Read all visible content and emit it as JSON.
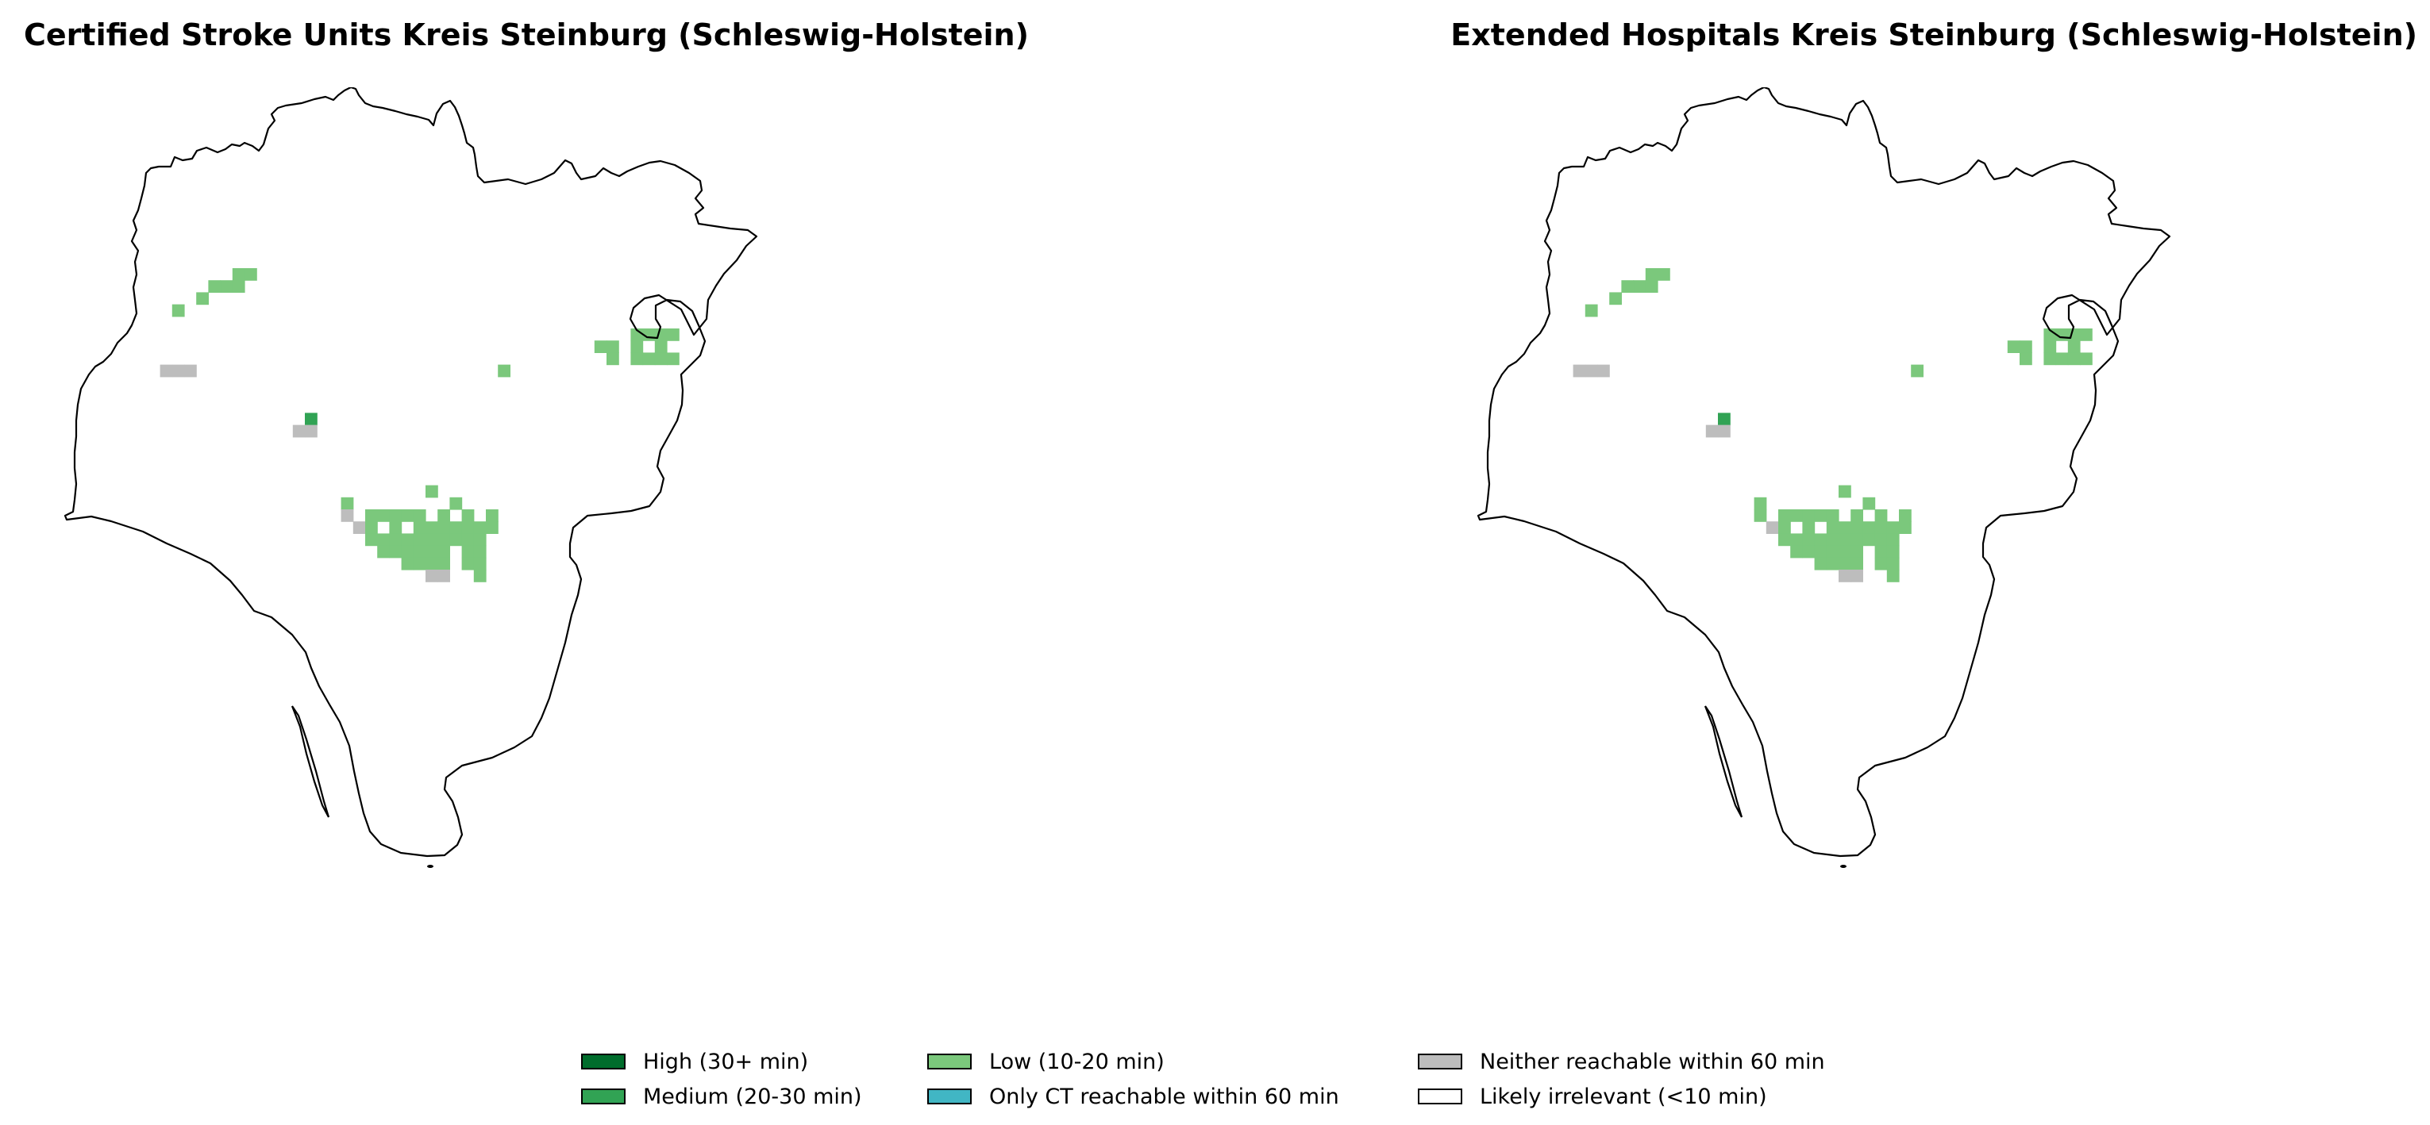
{
  "maps": [
    {
      "title": "Certified Stroke Units Kreis Steinburg (Schleswig-Holstein)",
      "cells": [
        {
          "col": 15,
          "row": 15,
          "cat": "low"
        },
        {
          "col": 14,
          "row": 15,
          "cat": "low"
        },
        {
          "col": 13,
          "row": 16,
          "cat": "low"
        },
        {
          "col": 14,
          "row": 16,
          "cat": "low"
        },
        {
          "col": 12,
          "row": 16,
          "cat": "low"
        },
        {
          "col": 11,
          "row": 17,
          "cat": "low"
        },
        {
          "col": 9,
          "row": 18,
          "cat": "low"
        },
        {
          "col": 47,
          "row": 20,
          "cat": "low"
        },
        {
          "col": 48,
          "row": 20,
          "cat": "low"
        },
        {
          "col": 49,
          "row": 20,
          "cat": "low"
        },
        {
          "col": 50,
          "row": 20,
          "cat": "low"
        },
        {
          "col": 44,
          "row": 21,
          "cat": "low"
        },
        {
          "col": 45,
          "row": 21,
          "cat": "low"
        },
        {
          "col": 47,
          "row": 21,
          "cat": "low"
        },
        {
          "col": 49,
          "row": 21,
          "cat": "low"
        },
        {
          "col": 45,
          "row": 22,
          "cat": "low"
        },
        {
          "col": 47,
          "row": 22,
          "cat": "low"
        },
        {
          "col": 48,
          "row": 22,
          "cat": "low"
        },
        {
          "col": 49,
          "row": 22,
          "cat": "low"
        },
        {
          "col": 50,
          "row": 22,
          "cat": "low"
        },
        {
          "col": 8,
          "row": 23,
          "cat": "neither"
        },
        {
          "col": 9,
          "row": 23,
          "cat": "neither"
        },
        {
          "col": 10,
          "row": 23,
          "cat": "neither"
        },
        {
          "col": 36,
          "row": 23,
          "cat": "low"
        },
        {
          "col": 20,
          "row": 27,
          "cat": "medium"
        },
        {
          "col": 19,
          "row": 28,
          "cat": "neither"
        },
        {
          "col": 20,
          "row": 28,
          "cat": "neither"
        },
        {
          "col": 30,
          "row": 33,
          "cat": "low"
        },
        {
          "col": 23,
          "row": 34,
          "cat": "low"
        },
        {
          "col": 32,
          "row": 34,
          "cat": "low"
        },
        {
          "col": 23,
          "row": 35,
          "cat": "neither"
        },
        {
          "col": 25,
          "row": 35,
          "cat": "low"
        },
        {
          "col": 26,
          "row": 35,
          "cat": "low"
        },
        {
          "col": 27,
          "row": 35,
          "cat": "low"
        },
        {
          "col": 28,
          "row": 35,
          "cat": "low"
        },
        {
          "col": 29,
          "row": 35,
          "cat": "low"
        },
        {
          "col": 31,
          "row": 35,
          "cat": "low"
        },
        {
          "col": 33,
          "row": 35,
          "cat": "low"
        },
        {
          "col": 35,
          "row": 35,
          "cat": "low"
        },
        {
          "col": 24,
          "row": 36,
          "cat": "neither"
        },
        {
          "col": 25,
          "row": 36,
          "cat": "low"
        },
        {
          "col": 27,
          "row": 36,
          "cat": "low"
        },
        {
          "col": 29,
          "row": 36,
          "cat": "low"
        },
        {
          "col": 30,
          "row": 36,
          "cat": "low"
        },
        {
          "col": 31,
          "row": 36,
          "cat": "low"
        },
        {
          "col": 32,
          "row": 36,
          "cat": "low"
        },
        {
          "col": 33,
          "row": 36,
          "cat": "low"
        },
        {
          "col": 34,
          "row": 36,
          "cat": "low"
        },
        {
          "col": 35,
          "row": 36,
          "cat": "low"
        },
        {
          "col": 25,
          "row": 37,
          "cat": "low"
        },
        {
          "col": 26,
          "row": 37,
          "cat": "low"
        },
        {
          "col": 27,
          "row": 37,
          "cat": "low"
        },
        {
          "col": 28,
          "row": 37,
          "cat": "low"
        },
        {
          "col": 29,
          "row": 37,
          "cat": "low"
        },
        {
          "col": 30,
          "row": 37,
          "cat": "low"
        },
        {
          "col": 31,
          "row": 37,
          "cat": "low"
        },
        {
          "col": 32,
          "row": 37,
          "cat": "low"
        },
        {
          "col": 33,
          "row": 37,
          "cat": "low"
        },
        {
          "col": 34,
          "row": 37,
          "cat": "low"
        },
        {
          "col": 26,
          "row": 38,
          "cat": "low"
        },
        {
          "col": 27,
          "row": 38,
          "cat": "low"
        },
        {
          "col": 28,
          "row": 38,
          "cat": "low"
        },
        {
          "col": 29,
          "row": 38,
          "cat": "low"
        },
        {
          "col": 30,
          "row": 38,
          "cat": "low"
        },
        {
          "col": 31,
          "row": 38,
          "cat": "low"
        },
        {
          "col": 33,
          "row": 38,
          "cat": "low"
        },
        {
          "col": 34,
          "row": 38,
          "cat": "low"
        },
        {
          "col": 28,
          "row": 39,
          "cat": "low"
        },
        {
          "col": 29,
          "row": 39,
          "cat": "low"
        },
        {
          "col": 30,
          "row": 39,
          "cat": "low"
        },
        {
          "col": 31,
          "row": 39,
          "cat": "low"
        },
        {
          "col": 33,
          "row": 39,
          "cat": "low"
        },
        {
          "col": 34,
          "row": 39,
          "cat": "low"
        },
        {
          "col": 30,
          "row": 40,
          "cat": "neither"
        },
        {
          "col": 31,
          "row": 40,
          "cat": "neither"
        },
        {
          "col": 34,
          "row": 40,
          "cat": "low"
        }
      ]
    },
    {
      "title": "Extended Hospitals Kreis Steinburg (Schleswig-Holstein)",
      "cells": [
        {
          "col": 15,
          "row": 15,
          "cat": "low"
        },
        {
          "col": 14,
          "row": 15,
          "cat": "low"
        },
        {
          "col": 13,
          "row": 16,
          "cat": "low"
        },
        {
          "col": 14,
          "row": 16,
          "cat": "low"
        },
        {
          "col": 12,
          "row": 16,
          "cat": "low"
        },
        {
          "col": 11,
          "row": 17,
          "cat": "low"
        },
        {
          "col": 9,
          "row": 18,
          "cat": "low"
        },
        {
          "col": 47,
          "row": 20,
          "cat": "low"
        },
        {
          "col": 48,
          "row": 20,
          "cat": "low"
        },
        {
          "col": 49,
          "row": 20,
          "cat": "low"
        },
        {
          "col": 50,
          "row": 20,
          "cat": "low"
        },
        {
          "col": 44,
          "row": 21,
          "cat": "low"
        },
        {
          "col": 45,
          "row": 21,
          "cat": "low"
        },
        {
          "col": 47,
          "row": 21,
          "cat": "low"
        },
        {
          "col": 49,
          "row": 21,
          "cat": "low"
        },
        {
          "col": 45,
          "row": 22,
          "cat": "low"
        },
        {
          "col": 47,
          "row": 22,
          "cat": "low"
        },
        {
          "col": 48,
          "row": 22,
          "cat": "low"
        },
        {
          "col": 49,
          "row": 22,
          "cat": "low"
        },
        {
          "col": 50,
          "row": 22,
          "cat": "low"
        },
        {
          "col": 8,
          "row": 23,
          "cat": "neither"
        },
        {
          "col": 9,
          "row": 23,
          "cat": "neither"
        },
        {
          "col": 10,
          "row": 23,
          "cat": "neither"
        },
        {
          "col": 36,
          "row": 23,
          "cat": "low"
        },
        {
          "col": 20,
          "row": 27,
          "cat": "medium"
        },
        {
          "col": 19,
          "row": 28,
          "cat": "neither"
        },
        {
          "col": 20,
          "row": 28,
          "cat": "neither"
        },
        {
          "col": 30,
          "row": 33,
          "cat": "low"
        },
        {
          "col": 23,
          "row": 34,
          "cat": "low"
        },
        {
          "col": 32,
          "row": 34,
          "cat": "low"
        },
        {
          "col": 23,
          "row": 35,
          "cat": "low"
        },
        {
          "col": 25,
          "row": 35,
          "cat": "low"
        },
        {
          "col": 26,
          "row": 35,
          "cat": "low"
        },
        {
          "col": 27,
          "row": 35,
          "cat": "low"
        },
        {
          "col": 28,
          "row": 35,
          "cat": "low"
        },
        {
          "col": 29,
          "row": 35,
          "cat": "low"
        },
        {
          "col": 31,
          "row": 35,
          "cat": "low"
        },
        {
          "col": 33,
          "row": 35,
          "cat": "low"
        },
        {
          "col": 35,
          "row": 35,
          "cat": "low"
        },
        {
          "col": 24,
          "row": 36,
          "cat": "neither"
        },
        {
          "col": 25,
          "row": 36,
          "cat": "low"
        },
        {
          "col": 27,
          "row": 36,
          "cat": "low"
        },
        {
          "col": 29,
          "row": 36,
          "cat": "low"
        },
        {
          "col": 30,
          "row": 36,
          "cat": "low"
        },
        {
          "col": 31,
          "row": 36,
          "cat": "low"
        },
        {
          "col": 32,
          "row": 36,
          "cat": "low"
        },
        {
          "col": 33,
          "row": 36,
          "cat": "low"
        },
        {
          "col": 34,
          "row": 36,
          "cat": "low"
        },
        {
          "col": 35,
          "row": 36,
          "cat": "low"
        },
        {
          "col": 25,
          "row": 37,
          "cat": "low"
        },
        {
          "col": 26,
          "row": 37,
          "cat": "low"
        },
        {
          "col": 27,
          "row": 37,
          "cat": "low"
        },
        {
          "col": 28,
          "row": 37,
          "cat": "low"
        },
        {
          "col": 29,
          "row": 37,
          "cat": "low"
        },
        {
          "col": 30,
          "row": 37,
          "cat": "low"
        },
        {
          "col": 31,
          "row": 37,
          "cat": "low"
        },
        {
          "col": 32,
          "row": 37,
          "cat": "low"
        },
        {
          "col": 33,
          "row": 37,
          "cat": "low"
        },
        {
          "col": 34,
          "row": 37,
          "cat": "low"
        },
        {
          "col": 26,
          "row": 38,
          "cat": "low"
        },
        {
          "col": 27,
          "row": 38,
          "cat": "low"
        },
        {
          "col": 28,
          "row": 38,
          "cat": "low"
        },
        {
          "col": 29,
          "row": 38,
          "cat": "low"
        },
        {
          "col": 30,
          "row": 38,
          "cat": "low"
        },
        {
          "col": 31,
          "row": 38,
          "cat": "low"
        },
        {
          "col": 33,
          "row": 38,
          "cat": "low"
        },
        {
          "col": 34,
          "row": 38,
          "cat": "low"
        },
        {
          "col": 28,
          "row": 39,
          "cat": "low"
        },
        {
          "col": 29,
          "row": 39,
          "cat": "low"
        },
        {
          "col": 30,
          "row": 39,
          "cat": "low"
        },
        {
          "col": 31,
          "row": 39,
          "cat": "low"
        },
        {
          "col": 33,
          "row": 39,
          "cat": "low"
        },
        {
          "col": 34,
          "row": 39,
          "cat": "low"
        },
        {
          "col": 30,
          "row": 40,
          "cat": "neither"
        },
        {
          "col": 31,
          "row": 40,
          "cat": "neither"
        },
        {
          "col": 34,
          "row": 40,
          "cat": "low"
        }
      ]
    }
  ],
  "legend": [
    {
      "key": "high",
      "label": "High (30+ min)",
      "color": "#006d2c"
    },
    {
      "key": "medium",
      "label": "Medium (20-30 min)",
      "color": "#31a354"
    },
    {
      "key": "low",
      "label": "Low (10-20 min)",
      "color": "#7bc87c"
    },
    {
      "key": "ct_only",
      "label": "Only CT reachable within 60 min",
      "color": "#41b6c4"
    },
    {
      "key": "neither",
      "label": "Neither reachable within 60 min",
      "color": "#bdbdbd"
    },
    {
      "key": "irrelevant",
      "label": "Likely irrelevant (<10 min)",
      "color": "#ffffff"
    }
  ]
}
